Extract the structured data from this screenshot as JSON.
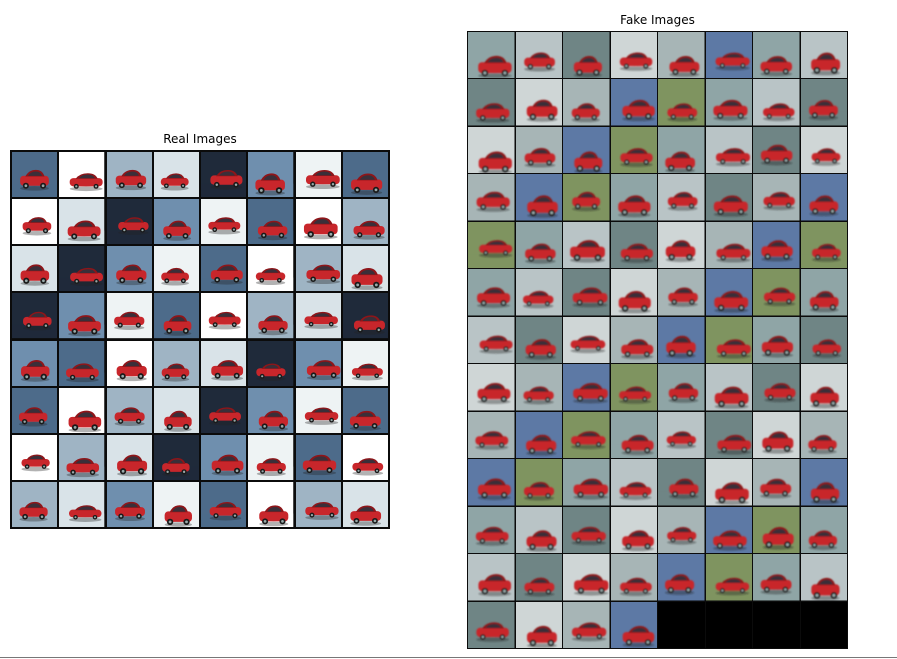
{
  "real_panel": {
    "title": "Real Images",
    "rows": 8,
    "cols": 8,
    "tile_count": 64
  },
  "fake_panel": {
    "title": "Fake Images",
    "rows": 13,
    "cols": 8,
    "tile_count": 100
  },
  "colors": {
    "car_red": "#c8262b",
    "car_dark_red": "#8e1519",
    "real_bg_light": "#eef3f4",
    "real_bg_blue": "#6f8fae",
    "real_bg_dark": "#1f2a3a",
    "fake_bg_gray": "#b9c4c6",
    "fake_bg_teal": "#8fa5a6",
    "fake_bg_green": "#7f9460",
    "fake_bg_blue": "#5d79a5"
  }
}
